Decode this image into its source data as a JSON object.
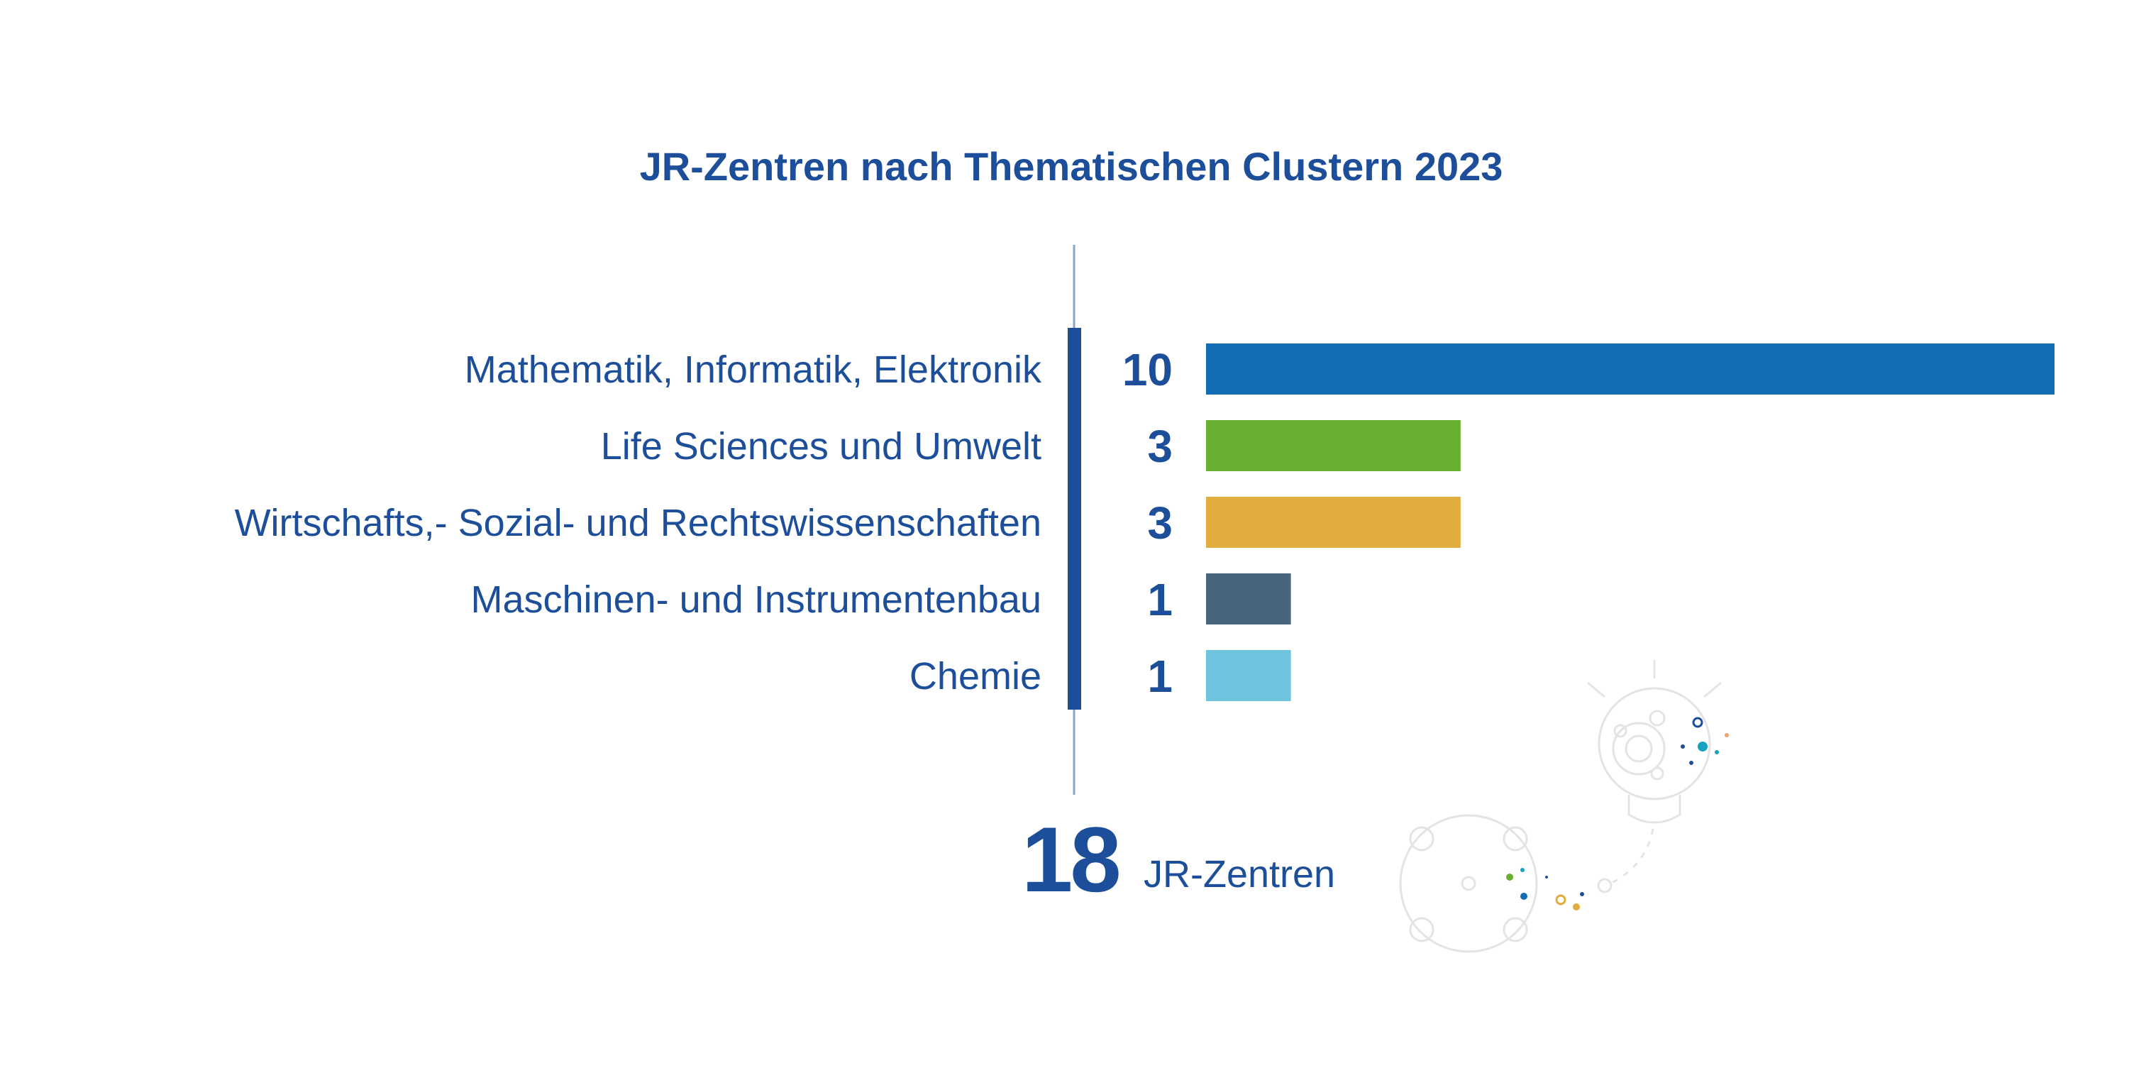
{
  "chart_data": {
    "type": "bar",
    "orientation": "horizontal",
    "title": "JR-Zentren nach Thematischen Clustern 2023",
    "categories": [
      "Mathematik, Informatik, Elektronik",
      "Life Sciences und Umwelt",
      "Wirtschafts,- Sozial- und Rechtswissenschaften",
      "Maschinen- und Instrumentenbau",
      "Chemie"
    ],
    "values": [
      10,
      3,
      3,
      1,
      1
    ],
    "value_labels": [
      "10",
      "3",
      "3",
      "1",
      "1"
    ],
    "colors": [
      "#126db3",
      "#67b02f",
      "#e1ab3e",
      "#48657c",
      "#6ec4dc"
    ],
    "xlim": [
      0,
      10
    ],
    "grid": false,
    "legend": "none"
  },
  "total": {
    "value": "18",
    "label": "JR-Zentren"
  },
  "colors": {
    "text": "#1d4e9a",
    "axis": "#1d4e9a",
    "thin_axis": "#8aa3c8",
    "decoration": "#e4e4e4"
  },
  "decoration": {
    "icon": "lightbulb-molecule-illustration"
  }
}
